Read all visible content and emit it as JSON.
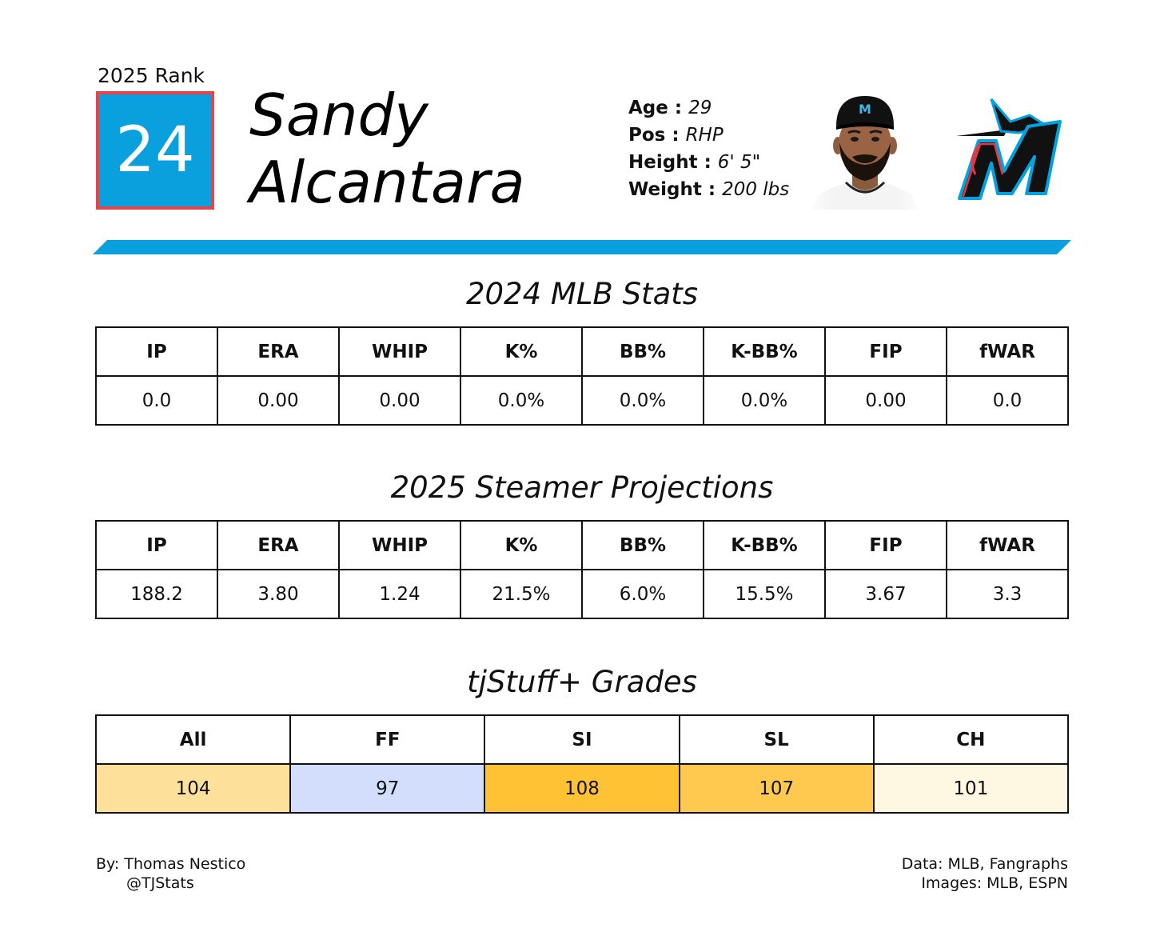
{
  "header": {
    "rank_label": "2025 Rank",
    "rank": "24",
    "first_name": "Sandy",
    "last_name": "Alcantara",
    "bio": [
      {
        "key": "Age :",
        "value": "29"
      },
      {
        "key": "Pos :",
        "value": "RHP"
      },
      {
        "key": "Height :",
        "value": "6' 5\""
      },
      {
        "key": "Weight :",
        "value": "200 lbs"
      }
    ],
    "colors": {
      "rank_fill": "#0aa0de",
      "rank_border": "#e8434a",
      "stripe": "#0aa0de"
    },
    "headshot_icon": "player-headshot",
    "logo_icon": "marlins-m-logo"
  },
  "stats_2024": {
    "title": "2024 MLB Stats",
    "columns": [
      "IP",
      "ERA",
      "WHIP",
      "K%",
      "BB%",
      "K-BB%",
      "FIP",
      "fWAR"
    ],
    "values": [
      "0.0",
      "0.00",
      "0.00",
      "0.0%",
      "0.0%",
      "0.0%",
      "0.00",
      "0.0"
    ]
  },
  "projections_2025": {
    "title": "2025 Steamer Projections",
    "columns": [
      "IP",
      "ERA",
      "WHIP",
      "K%",
      "BB%",
      "K-BB%",
      "FIP",
      "fWAR"
    ],
    "values": [
      "188.2",
      "3.80",
      "1.24",
      "21.5%",
      "6.0%",
      "15.5%",
      "3.67",
      "3.3"
    ]
  },
  "grades": {
    "title": "tjStuff+ Grades",
    "columns": [
      "All",
      "FF",
      "SI",
      "SL",
      "CH"
    ],
    "values": [
      "104",
      "97",
      "108",
      "107",
      "101"
    ],
    "colors": [
      "#fde19a",
      "#d3defc",
      "#fec234",
      "#fec94e",
      "#fef7e2"
    ]
  },
  "footer": {
    "author": "By: Thomas Nestico",
    "handle": "@TJStats",
    "data_credit": "Data: MLB, Fangraphs",
    "image_credit": "Images: MLB, ESPN"
  }
}
